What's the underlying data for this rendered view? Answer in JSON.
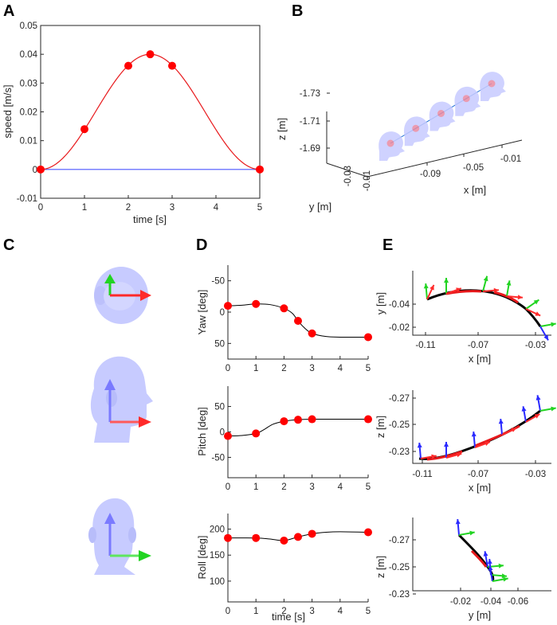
{
  "panels": {
    "A": "A",
    "B": "B",
    "C": "C",
    "D": "D",
    "E": "E"
  },
  "colors": {
    "curve": "#e8191c",
    "marker": "#ff0000",
    "baseline": "#4b55ff",
    "axis": "#262626",
    "traj": "#000000",
    "head": "#c7cbff",
    "arrow_x": "#ff2a2a",
    "arrow_y": "#22d422",
    "arrow_z": "#2a2aff"
  },
  "chart_data": [
    {
      "id": "A",
      "type": "line",
      "title": "",
      "xlabel": "time [s]",
      "ylabel": "speed [m/s]",
      "xlim": [
        0,
        5
      ],
      "ylim": [
        -0.01,
        0.05
      ],
      "xticks": [
        0,
        1,
        2,
        3,
        4,
        5
      ],
      "yticks": [
        -0.01,
        0,
        0.01,
        0.02,
        0.03,
        0.04,
        0.05
      ],
      "ytick_labels": [
        "-0.01",
        "0",
        "0.01",
        "0.02",
        "0.03",
        "0.04",
        "0.05"
      ],
      "series": [
        {
          "name": "speed profile",
          "kind": "curve",
          "formula": "0.02*(1-cos(2*pi*t/5))"
        },
        {
          "name": "samples",
          "kind": "points",
          "x": [
            0,
            1,
            2,
            2.5,
            3,
            5
          ],
          "y": [
            0,
            0.014,
            0.036,
            0.04,
            0.036,
            0
          ]
        },
        {
          "name": "zero",
          "kind": "hline",
          "y": 0
        }
      ]
    },
    {
      "id": "B",
      "type": "scatter3d",
      "xlabel": "x [m]",
      "ylabel": "y [m]",
      "zlabel": "z [m]",
      "x_tick_labels": [
        "-0.09",
        "-0.05",
        "-0.01"
      ],
      "y_tick_labels": [
        "-0.03",
        "-0.01"
      ],
      "z_tick_labels": [
        "-1.73",
        "-1.71",
        "-1.69"
      ],
      "heads": 5
    },
    {
      "id": "D1",
      "type": "line",
      "ylabel": "Yaw [deg]",
      "xlabel": "",
      "xlim": [
        0,
        5
      ],
      "ylim": [
        -75,
        75
      ],
      "y_reversed": true,
      "xticks": [
        0,
        1,
        2,
        3,
        4,
        5
      ],
      "yticks": [
        -50,
        0,
        50
      ],
      "ytick_labels": [
        "-50",
        "0",
        "50"
      ],
      "curve_x": [
        0,
        0.5,
        1,
        1.5,
        2,
        2.3,
        2.5,
        2.75,
        3,
        3.5,
        4,
        4.5,
        5
      ],
      "curve_y": [
        -10,
        -11,
        -13,
        -12,
        -6,
        2,
        14,
        26,
        34,
        39,
        40,
        40,
        40
      ],
      "points_x": [
        0,
        1,
        2,
        2.5,
        3,
        5
      ],
      "points_y": [
        -10,
        -13,
        -6,
        14,
        34,
        40
      ]
    },
    {
      "id": "D2",
      "type": "line",
      "ylabel": "Pitch [deg]",
      "xlabel": "",
      "xlim": [
        0,
        5
      ],
      "ylim": [
        -90,
        90
      ],
      "xticks": [
        0,
        1,
        2,
        3,
        4,
        5
      ],
      "yticks": [
        -50,
        0,
        50
      ],
      "ytick_labels": [
        "-50",
        "0",
        "50"
      ],
      "curve_x": [
        0,
        0.5,
        1,
        1.3,
        1.6,
        2,
        2.5,
        3,
        3.5,
        4,
        5
      ],
      "curve_y": [
        -8,
        -7,
        -3,
        5,
        15,
        21,
        24,
        25,
        25,
        25,
        25
      ],
      "points_x": [
        0,
        1,
        2,
        2.5,
        3,
        5
      ],
      "points_y": [
        -8,
        -3,
        21,
        24,
        25,
        25
      ]
    },
    {
      "id": "D3",
      "type": "line",
      "ylabel": "Roll [deg]",
      "xlabel": "time [s]",
      "xlim": [
        0,
        5
      ],
      "ylim": [
        60,
        230
      ],
      "xticks": [
        0,
        1,
        2,
        3,
        4,
        5
      ],
      "yticks": [
        100,
        150,
        200
      ],
      "ytick_labels": [
        "100",
        "150",
        "200"
      ],
      "curve_x": [
        0,
        1,
        1.5,
        2,
        2.5,
        3,
        3.5,
        4,
        5
      ],
      "curve_y": [
        183,
        183,
        181,
        178,
        185,
        191,
        194,
        195,
        194
      ],
      "points_x": [
        0,
        1,
        2,
        2.5,
        3,
        5
      ],
      "points_y": [
        183,
        183,
        178,
        185,
        191,
        194
      ]
    },
    {
      "id": "E1",
      "type": "line",
      "xlabel": "x [m]",
      "ylabel": "y [m]",
      "x_tick_labels": [
        "-0.11",
        "-0.07",
        "-0.03"
      ],
      "y_tick_labels": [
        "-0.04",
        "-0.02"
      ]
    },
    {
      "id": "E2",
      "type": "line",
      "xlabel": "x [m]",
      "ylabel": "z [m]",
      "x_tick_labels": [
        "-0.11",
        "-0.07",
        "-0.03"
      ],
      "y_tick_labels": [
        "-0.27",
        "-0.25",
        "-0.23"
      ]
    },
    {
      "id": "E3",
      "type": "line",
      "xlabel": "y [m]",
      "ylabel": "z [m]",
      "x_tick_labels": [
        "-0.02",
        "-0.04",
        "-0.06"
      ],
      "y_tick_labels": [
        "-0.27",
        "-0.25",
        "-0.23"
      ]
    }
  ]
}
